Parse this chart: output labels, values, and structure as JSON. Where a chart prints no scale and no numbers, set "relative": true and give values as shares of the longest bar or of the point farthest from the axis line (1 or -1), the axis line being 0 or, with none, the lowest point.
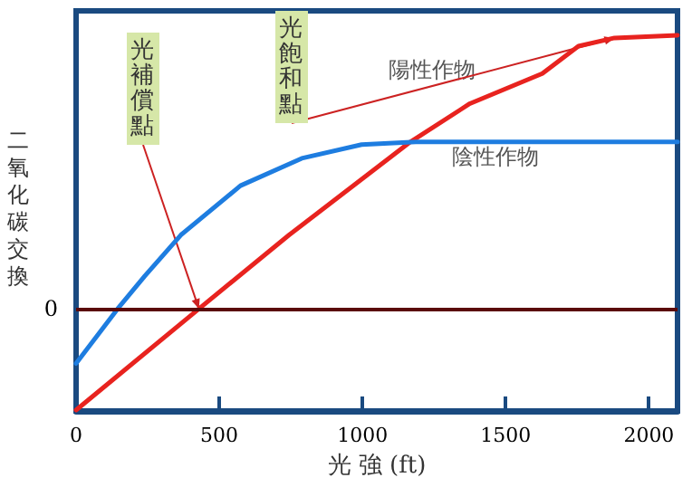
{
  "chart_data": {
    "type": "line",
    "xlabel": "光 強 (ft)",
    "ylabel": "二氧化碳交換",
    "relative": true,
    "xlim": [
      0,
      2100
    ],
    "xticks": [
      0,
      500,
      1000,
      1500,
      2000
    ],
    "grid": false,
    "legend": false,
    "marker": "none",
    "line_style": "solid",
    "series": [
      {
        "name": "陽性作物",
        "color": "#e8231f",
        "x": [
          0,
          429,
          744,
          1167,
          1375,
          1628,
          1754,
          1880,
          2100
        ],
        "values": [
          -0.37,
          0,
          0.27,
          0.61,
          0.75,
          0.86,
          0.96,
          0.99,
          1
        ]
      },
      {
        "name": "陰性作物",
        "color": "#1e7de0",
        "x": [
          0,
          145,
          240,
          366,
          574,
          788,
          997,
          1186,
          2100
        ],
        "values": [
          -0.2,
          0,
          0.12,
          0.27,
          0.45,
          0.55,
          0.6,
          0.61,
          0.61
        ]
      }
    ],
    "ref_lines": [
      {
        "axis": "y",
        "value": 0,
        "label": "0",
        "color": "#5a0a0a"
      }
    ],
    "annotations": [
      {
        "text": "光補償點",
        "x": 429,
        "y": 0
      },
      {
        "text": "光飽和點",
        "x": 1880,
        "y": 0.99
      }
    ]
  }
}
